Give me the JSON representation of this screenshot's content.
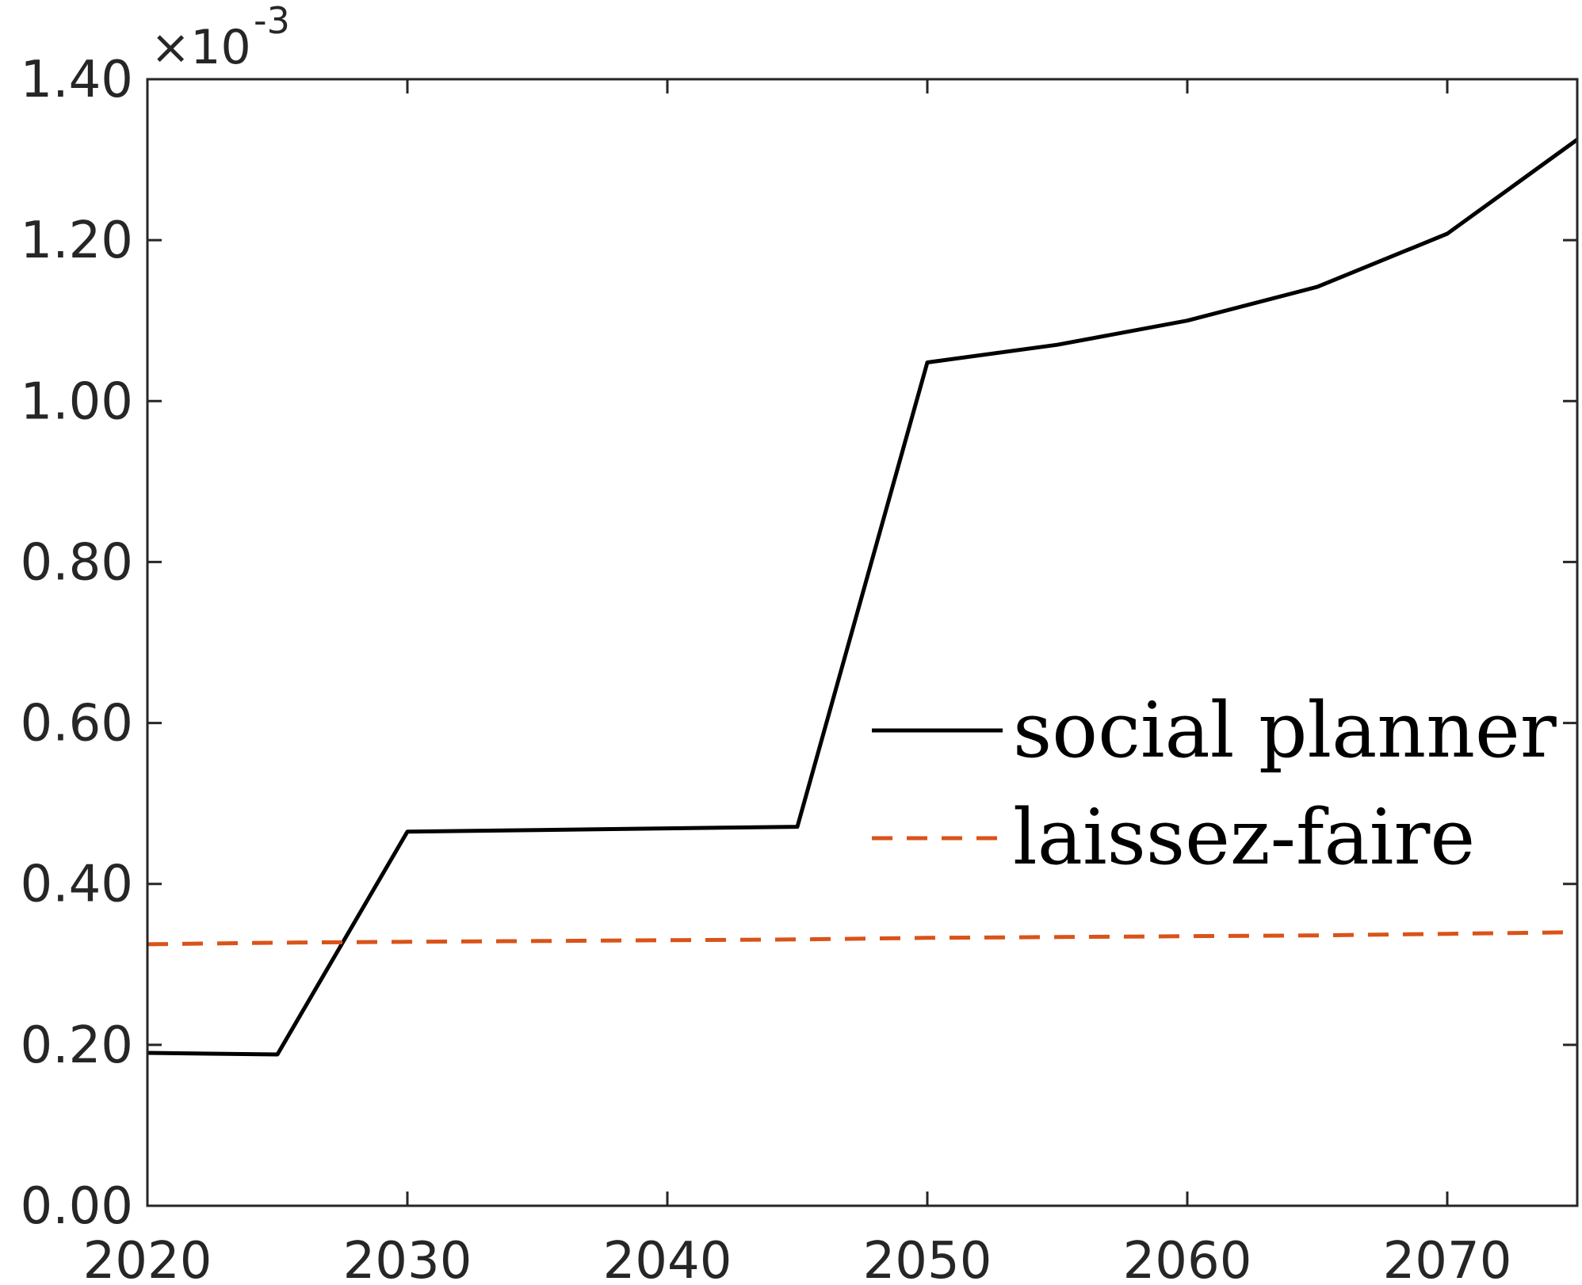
{
  "chart_data": {
    "type": "line",
    "title": "",
    "xlabel": "",
    "ylabel": "",
    "xlim": [
      2020,
      2075
    ],
    "ylim": [
      0,
      1.4
    ],
    "y_multiplier": "×10",
    "y_multiplier_exponent": "-3",
    "x_ticks": [
      2020,
      2030,
      2040,
      2050,
      2060,
      2070
    ],
    "x_tick_labels": [
      "2020",
      "2030",
      "2040",
      "2050",
      "2060",
      "2070"
    ],
    "y_ticks": [
      0,
      0.2,
      0.4,
      0.6,
      0.8,
      1.0,
      1.2,
      1.4
    ],
    "y_tick_labels": [
      "0.00",
      "0.20",
      "0.40",
      "0.60",
      "0.80",
      "1.00",
      "1.20",
      "1.40"
    ],
    "grid": false,
    "legend_position": "center-right",
    "x": [
      2020,
      2025,
      2030,
      2035,
      2040,
      2045,
      2050,
      2055,
      2060,
      2065,
      2070,
      2075
    ],
    "series": [
      {
        "name": "social planner",
        "color": "#000000",
        "style": "solid",
        "values": [
          0.19,
          0.188,
          0.465,
          0.467,
          0.469,
          0.471,
          1.048,
          1.07,
          1.1,
          1.142,
          1.208,
          1.325
        ]
      },
      {
        "name": "laissez-faire",
        "color": "#D95319",
        "style": "dashed",
        "values": [
          0.325,
          0.327,
          0.328,
          0.329,
          0.33,
          0.331,
          0.333,
          0.334,
          0.335,
          0.336,
          0.338,
          0.34
        ]
      }
    ]
  }
}
